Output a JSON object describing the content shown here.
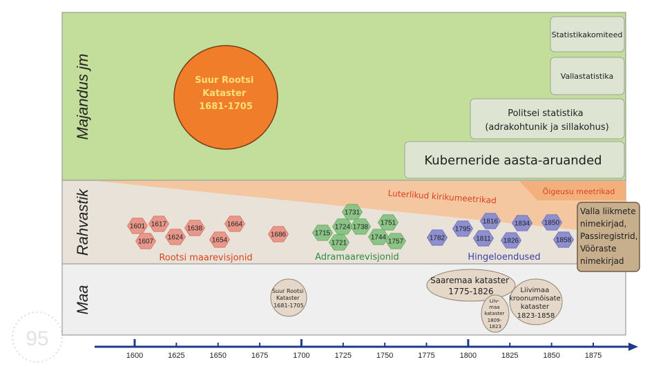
{
  "bands": {
    "economy_label": "Majandus jm",
    "population_label": "Rahvastik",
    "land_label": "Maa"
  },
  "economy": {
    "swedish_cadastre": [
      "Suur Rootsi",
      "Kataster",
      "1681-1705"
    ],
    "boxes": [
      {
        "lines": [
          "Statistikakomiteed"
        ]
      },
      {
        "lines": [
          "Vallastatistika"
        ]
      },
      {
        "lines": [
          "Politsei statistika",
          "(adrakohtunik ja sillakohus)"
        ]
      },
      {
        "lines": [
          "Kuberneride aasta-aruanded"
        ]
      }
    ]
  },
  "population": {
    "lutheran_label": "Luterlikud kirikumeetrikad",
    "orthodox_label": "Õigeusu meetrikad",
    "side_box": [
      "Valla liikmete",
      "nimekirjad,",
      "Passiregistrid,",
      "Vööraste",
      "nimekirjad"
    ],
    "groups": [
      {
        "label": "Rootsi maarevisjonid",
        "color": "#d9421f",
        "years": [
          "1601",
          "1617",
          "1607",
          "1638",
          "1624",
          "1664",
          "1654",
          "1686"
        ]
      },
      {
        "label": "Adramaarevisjonid",
        "color": "#2e8a3e",
        "years": [
          "1731",
          "1715",
          "1724",
          "1738",
          "1751",
          "1721",
          "1744",
          "1757"
        ]
      },
      {
        "label": "Hingeloendused",
        "color": "#3b3fa3",
        "years": [
          "1782",
          "1795",
          "1816",
          "1811",
          "1834",
          "1826",
          "1850",
          "1858"
        ]
      }
    ]
  },
  "land": {
    "ellipses": [
      {
        "lines": [
          "Suur Rootsi",
          "Kataster",
          "1681-1705"
        ]
      },
      {
        "lines": [
          "Saaremaa kataster",
          "1775-1826"
        ]
      },
      {
        "lines": [
          "Liivimaa",
          "kroonumõisate",
          "kataster",
          "1823-1858"
        ]
      },
      {
        "lines": [
          "Liiv-",
          "maa",
          "kataster",
          "1809-",
          "1823"
        ]
      }
    ]
  },
  "axis": {
    "ticks": [
      "1600",
      "1625",
      "1650",
      "1675",
      "1700",
      "1725",
      "1750",
      "1775",
      "1800",
      "1825",
      "1850",
      "1875"
    ]
  },
  "colors": {
    "economy_bg": "#c3dd9b",
    "population_bg": "#e9e2d9",
    "land_bg": "#efefef",
    "lutheran_wedge": "#f4c7a0",
    "orthodox_wedge": "#f3b07c",
    "cadastre_circle": "#f07d2a",
    "box_fill": "#dde5d2",
    "side_box_fill": "#c7ae8c",
    "ellipse_fill": "#e6d8c9",
    "axis": "#1c3a8c"
  }
}
